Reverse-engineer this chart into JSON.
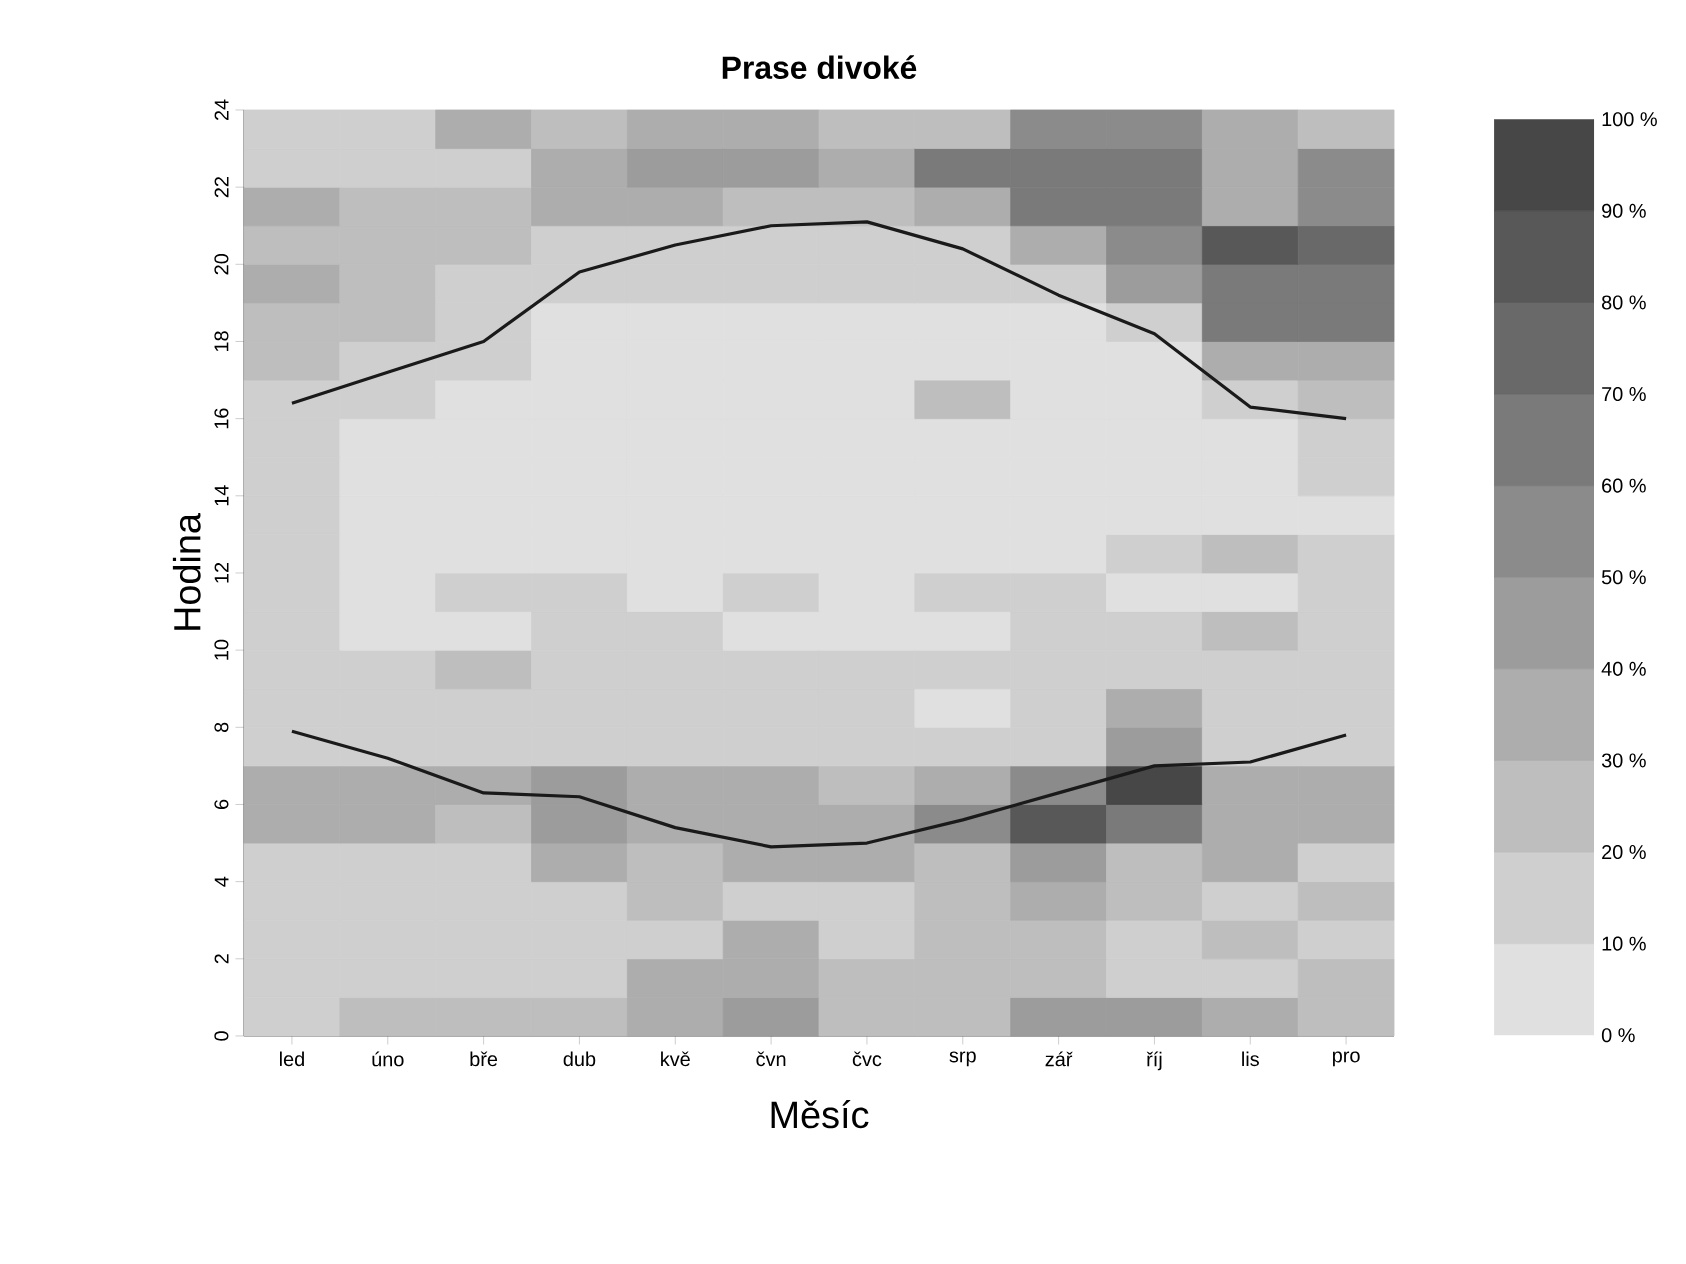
{
  "chart_data": {
    "type": "heatmap",
    "title": "Prase divoké",
    "xlabel": "Měsíc",
    "ylabel": "Hodina",
    "categories": [
      "led",
      "úno",
      "bře",
      "dub",
      "kvě",
      "čvn",
      "čvc",
      "srp",
      "zář",
      "říj",
      "lis",
      "pro"
    ],
    "ylim": [
      0,
      24
    ],
    "yticks": [
      0,
      2,
      4,
      6,
      8,
      10,
      12,
      14,
      16,
      18,
      20,
      22,
      24
    ],
    "clim": [
      0,
      100
    ],
    "cticks": [
      {
        "value": 0,
        "label": "0 %"
      },
      {
        "value": 10,
        "label": "10 %"
      },
      {
        "value": 20,
        "label": "20 %"
      },
      {
        "value": 30,
        "label": "30 %"
      },
      {
        "value": 40,
        "label": "40 %"
      },
      {
        "value": 50,
        "label": "50 %"
      },
      {
        "value": 60,
        "label": "60 %"
      },
      {
        "value": 70,
        "label": "70 %"
      },
      {
        "value": 80,
        "label": "80 %"
      },
      {
        "value": 90,
        "label": "90 %"
      },
      {
        "value": 100,
        "label": "100 %"
      }
    ],
    "cells": [
      [
        15,
        15,
        35,
        25,
        35,
        35,
        25,
        25,
        55,
        55,
        35,
        25
      ],
      [
        15,
        15,
        15,
        35,
        45,
        45,
        35,
        65,
        65,
        65,
        35,
        55
      ],
      [
        35,
        25,
        25,
        35,
        35,
        25,
        25,
        35,
        65,
        65,
        35,
        55
      ],
      [
        25,
        25,
        25,
        15,
        15,
        15,
        15,
        15,
        35,
        55,
        85,
        75
      ],
      [
        35,
        25,
        15,
        15,
        15,
        15,
        15,
        15,
        15,
        45,
        65,
        65
      ],
      [
        25,
        25,
        15,
        5,
        5,
        5,
        5,
        5,
        5,
        15,
        65,
        65
      ],
      [
        25,
        15,
        15,
        5,
        5,
        5,
        5,
        5,
        5,
        5,
        35,
        35
      ],
      [
        15,
        15,
        5,
        5,
        5,
        5,
        5,
        25,
        5,
        5,
        15,
        25
      ],
      [
        15,
        5,
        5,
        5,
        5,
        5,
        5,
        5,
        5,
        5,
        5,
        15
      ],
      [
        15,
        5,
        5,
        5,
        5,
        5,
        5,
        5,
        5,
        5,
        5,
        15
      ],
      [
        15,
        5,
        5,
        5,
        5,
        5,
        5,
        5,
        5,
        5,
        5,
        5
      ],
      [
        15,
        5,
        5,
        5,
        5,
        5,
        5,
        5,
        5,
        15,
        25,
        15
      ],
      [
        15,
        5,
        15,
        15,
        5,
        15,
        5,
        15,
        15,
        5,
        5,
        15
      ],
      [
        15,
        5,
        5,
        15,
        15,
        5,
        5,
        5,
        15,
        15,
        25,
        15
      ],
      [
        15,
        15,
        25,
        15,
        15,
        15,
        15,
        15,
        15,
        15,
        15,
        15
      ],
      [
        15,
        15,
        15,
        15,
        15,
        15,
        15,
        5,
        15,
        35,
        15,
        15
      ],
      [
        15,
        15,
        15,
        15,
        15,
        15,
        15,
        15,
        15,
        45,
        15,
        15
      ],
      [
        35,
        35,
        35,
        45,
        35,
        35,
        25,
        35,
        55,
        95,
        35,
        35
      ],
      [
        35,
        35,
        25,
        45,
        35,
        35,
        35,
        55,
        85,
        65,
        35,
        35
      ],
      [
        15,
        15,
        15,
        35,
        25,
        35,
        35,
        25,
        45,
        25,
        35,
        15
      ],
      [
        15,
        15,
        15,
        15,
        25,
        15,
        15,
        25,
        35,
        25,
        15,
        25
      ],
      [
        15,
        15,
        15,
        15,
        15,
        35,
        15,
        25,
        25,
        15,
        25,
        15
      ],
      [
        15,
        15,
        15,
        15,
        35,
        35,
        25,
        25,
        25,
        15,
        15,
        25
      ],
      [
        15,
        25,
        25,
        25,
        35,
        45,
        25,
        25,
        45,
        45,
        35,
        25
      ]
    ],
    "series": [
      {
        "type": "line",
        "color": "#1a1a1a",
        "values": [
          16.4,
          17.2,
          18.0,
          19.8,
          20.5,
          21.0,
          21.1,
          20.4,
          19.2,
          18.2,
          16.3,
          16.0
        ]
      },
      {
        "type": "line",
        "color": "#1a1a1a",
        "values": [
          7.9,
          7.2,
          6.3,
          6.2,
          5.4,
          4.9,
          5.0,
          5.6,
          6.3,
          7.0,
          7.1,
          7.8
        ]
      }
    ],
    "grid": false
  }
}
